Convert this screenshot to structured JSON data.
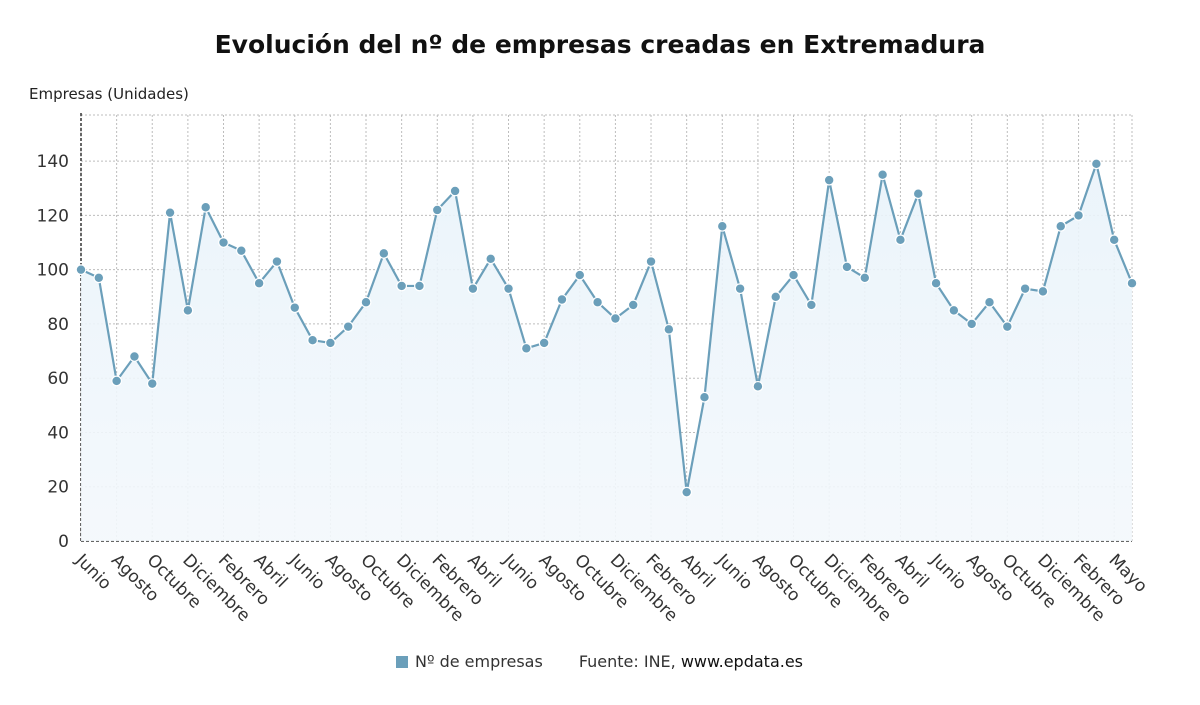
{
  "chart_data": {
    "type": "area",
    "title": "Evolución del nº de empresas creadas en Extremadura",
    "ylabel": "Empresas (Unidades)",
    "ylim": [
      0,
      157
    ],
    "yticks": [
      0,
      20,
      40,
      60,
      80,
      100,
      120,
      140
    ],
    "grid": true,
    "legend_position": "bottom",
    "x_tick_labels": [
      "Junio",
      "Agosto",
      "Octubre",
      "Diciembre",
      "Febrero",
      "Abril",
      "Junio",
      "Agosto",
      "Octubre",
      "Diciembre",
      "Febrero",
      "Abril",
      "Junio",
      "Agosto",
      "Octubre",
      "Diciembre",
      "Febrero",
      "Abril",
      "Junio",
      "Agosto",
      "Octubre",
      "Diciembre",
      "Febrero",
      "Abril",
      "Junio",
      "Agosto",
      "Octubre",
      "Diciembre",
      "Febrero",
      "Mayo"
    ],
    "series": [
      {
        "name": "Nº de empresas",
        "color": "#6b9fba",
        "values": [
          100,
          97,
          59,
          68,
          58,
          121,
          85,
          123,
          110,
          107,
          95,
          103,
          86,
          74,
          73,
          79,
          88,
          106,
          94,
          94,
          122,
          129,
          93,
          104,
          93,
          71,
          73,
          89,
          98,
          88,
          82,
          87,
          103,
          78,
          18,
          53,
          116,
          93,
          57,
          90,
          98,
          87,
          133,
          101,
          97,
          135,
          111,
          128,
          95,
          85,
          80,
          88,
          79,
          93,
          92,
          116,
          120,
          139,
          111,
          95
        ]
      }
    ]
  },
  "legend": {
    "label": "Nº de empresas"
  },
  "source": {
    "prefix": "Fuente: INE, ",
    "url": "www.epdata.es"
  }
}
